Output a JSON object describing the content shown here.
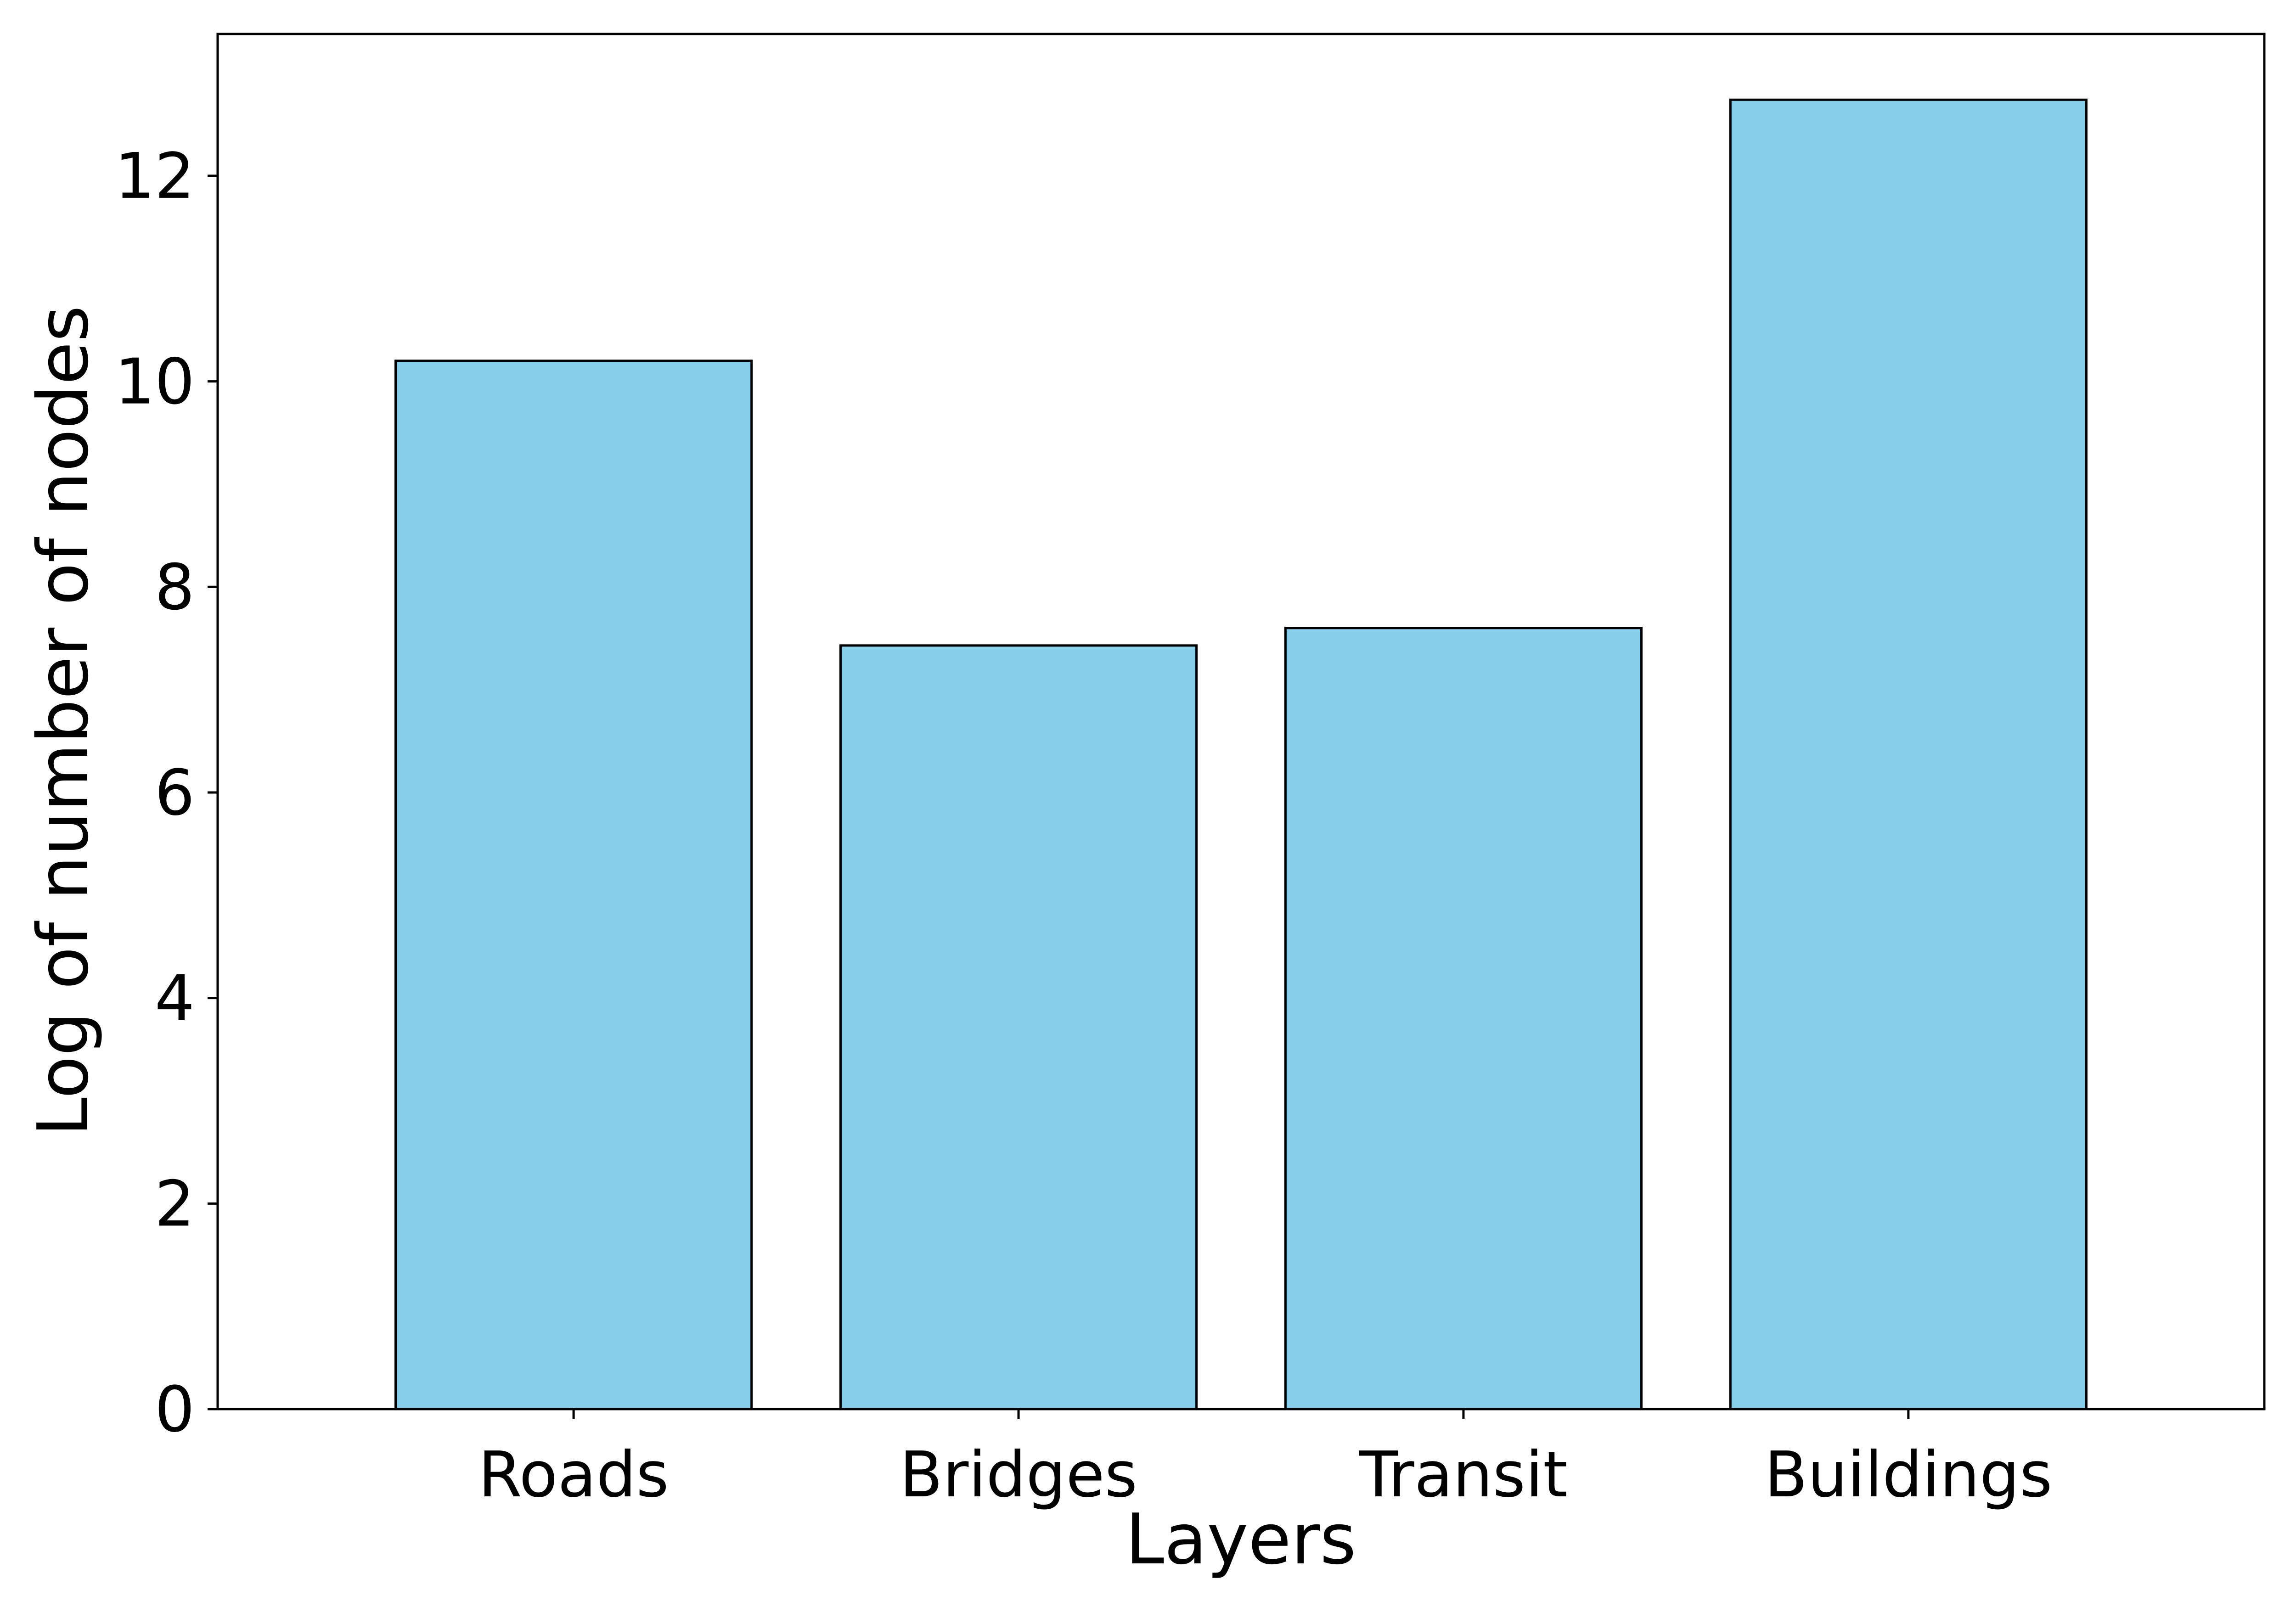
{
  "chart_data": {
    "type": "bar",
    "categories": [
      "Roads",
      "Bridges",
      "Transit",
      "Buildings"
    ],
    "values": [
      10.2,
      7.43,
      7.6,
      12.74
    ],
    "title": "",
    "xlabel": "Layers",
    "ylabel": "Log of number of nodes",
    "ylim": [
      0,
      13.38
    ],
    "yticks": [
      0,
      2,
      4,
      6,
      8,
      10,
      12
    ],
    "ytick_labels": [
      "0",
      "2",
      "4",
      "6",
      "8",
      "10",
      "12"
    ],
    "grid": false,
    "bar_color": "#87CEEB",
    "edge_color": "#000000"
  }
}
